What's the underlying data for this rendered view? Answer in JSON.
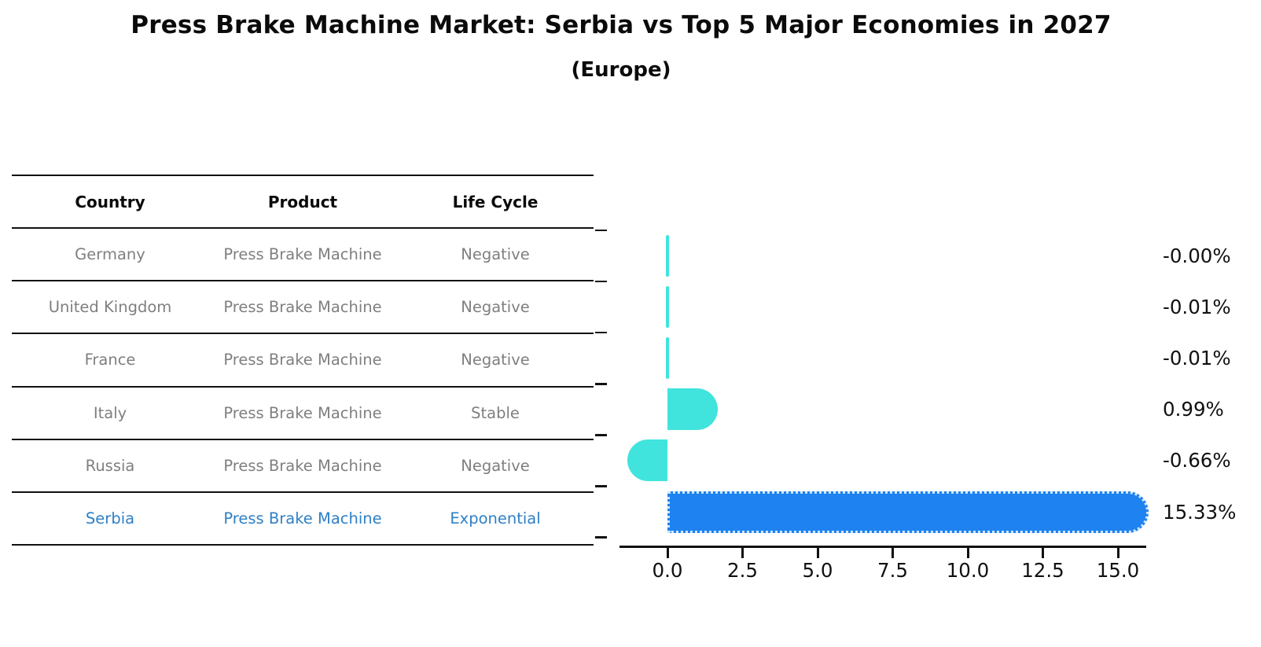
{
  "title": "Press Brake Machine Market: Serbia vs Top 5 Major Economies in 2027",
  "subtitle": "(Europe)",
  "table": {
    "headers": [
      "Country",
      "Product",
      "Life Cycle"
    ],
    "rows": [
      {
        "country": "Germany",
        "product": "Press Brake Machine",
        "life_cycle": "Negative",
        "highlighted": false
      },
      {
        "country": "United Kingdom",
        "product": "Press Brake Machine",
        "life_cycle": "Negative",
        "highlighted": false
      },
      {
        "country": "France",
        "product": "Press Brake Machine",
        "life_cycle": "Negative",
        "highlighted": false
      },
      {
        "country": "Italy",
        "product": "Press Brake Machine",
        "life_cycle": "Stable",
        "highlighted": false
      },
      {
        "country": "Russia",
        "product": "Press Brake Machine",
        "life_cycle": "Negative",
        "highlighted": false
      },
      {
        "country": "Serbia",
        "product": "Press Brake Machine",
        "life_cycle": "Exponential",
        "highlighted": true
      }
    ]
  },
  "chart_data": {
    "type": "bar",
    "orientation": "horizontal",
    "title": "Press Brake Machine Market: Serbia vs Top 5 Major Economies in 2027",
    "subtitle": "(Europe)",
    "categories": [
      "Germany",
      "United Kingdom",
      "France",
      "Italy",
      "Russia",
      "Serbia"
    ],
    "values": [
      -0.0,
      -0.01,
      -0.01,
      0.99,
      -0.66,
      15.33
    ],
    "value_labels": [
      "-0.00%",
      "-0.01%",
      "-0.01%",
      "0.99%",
      "-0.66%",
      "15.33%"
    ],
    "xlabel": "",
    "ylabel": "",
    "xticks": [
      0.0,
      2.5,
      5.0,
      7.5,
      10.0,
      12.5,
      15.0
    ],
    "xtick_labels": [
      "0.0",
      "2.5",
      "5.0",
      "7.5",
      "10.0",
      "12.5",
      "15.0"
    ],
    "xlim": [
      -1.6,
      15.9
    ],
    "grid": false,
    "legend": "none",
    "bar_color": "#40E4DC",
    "highlight_color": "#1e82f0",
    "highlight_index": 5,
    "highlight_border_style": "dotted"
  },
  "colors": {
    "background": "#ffffff",
    "text_primary": "#0a0a0a",
    "text_muted": "#7f7f7f",
    "highlight_text": "#2e80c6",
    "axis": "#111111"
  }
}
